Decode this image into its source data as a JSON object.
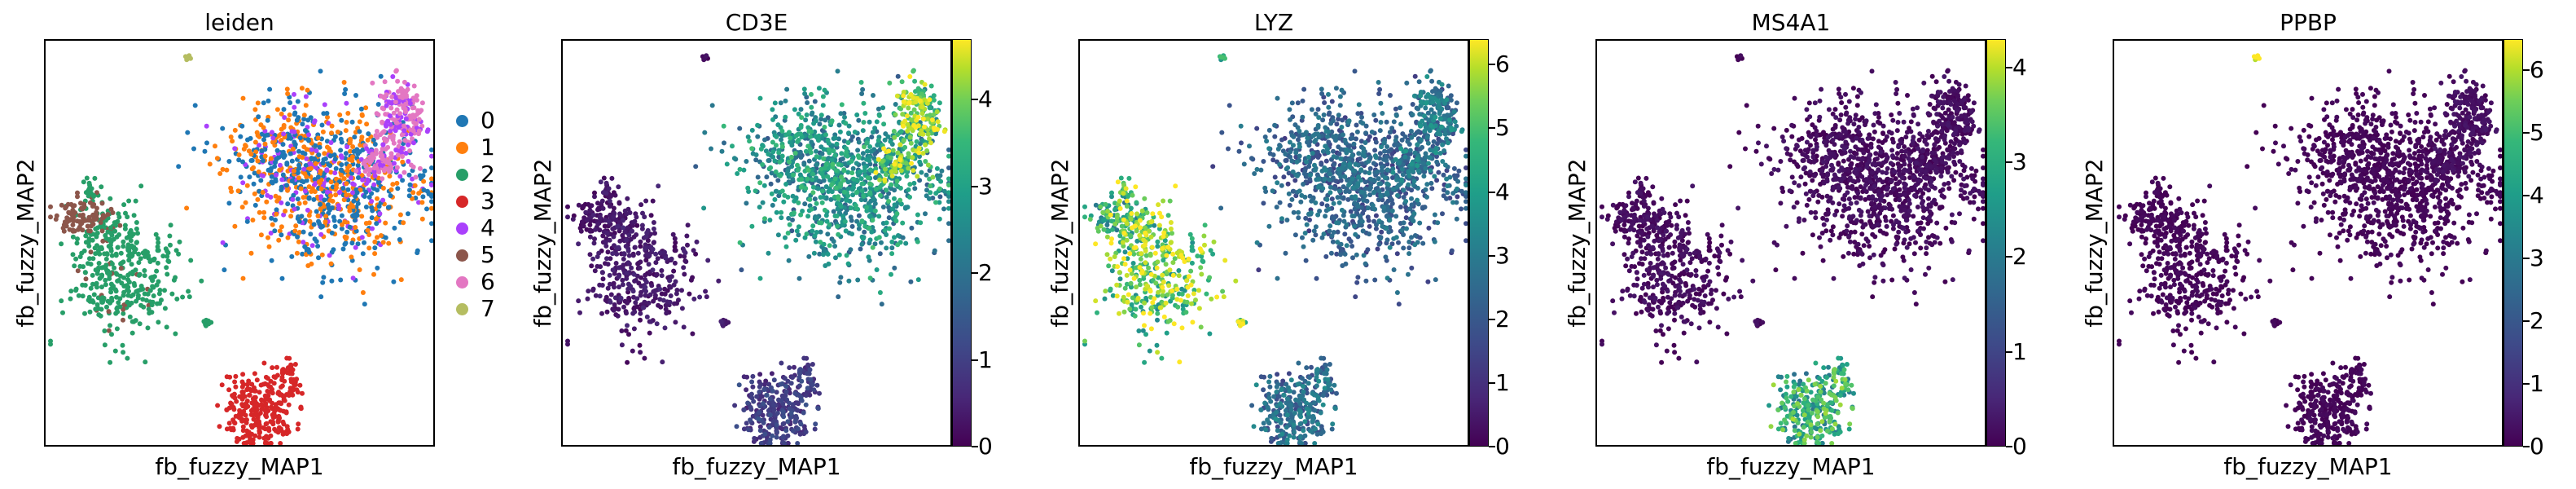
{
  "chart_data": [
    {
      "type": "scatter",
      "title": "leiden",
      "xlabel": "fb_fuzzy_MAP1",
      "ylabel": "fb_fuzzy_MAP2",
      "legend": {
        "placement": "right",
        "entries": [
          {
            "label": "0",
            "color": "#1f77b4"
          },
          {
            "label": "1",
            "color": "#ff7f0e"
          },
          {
            "label": "2",
            "color": "#279e68"
          },
          {
            "label": "3",
            "color": "#d62728"
          },
          {
            "label": "4",
            "color": "#aa40fc"
          },
          {
            "label": "5",
            "color": "#8c564b"
          },
          {
            "label": "6",
            "color": "#e377c2"
          },
          {
            "label": "7",
            "color": "#b5bd61"
          }
        ]
      },
      "colorbar": null,
      "clusters": {
        "T": "0",
        "B": "3",
        "Mono": "2",
        "DC": "5",
        "Up": "6",
        "Pl": "7",
        "Sm": "2"
      }
    },
    {
      "type": "scatter",
      "title": "CD3E",
      "xlabel": "fb_fuzzy_MAP1",
      "ylabel": "fb_fuzzy_MAP2",
      "colorbar": {
        "min": 0,
        "max": 4.7,
        "ticks": [
          "0",
          "1",
          "2",
          "3",
          "4"
        ],
        "cmap": "viridis"
      },
      "expression": {
        "T": 2.3,
        "B": 0.8,
        "Mono": 0.3,
        "DC": 0.2,
        "Up": 3.5,
        "Pl": 0.1,
        "Sm": 0.3
      }
    },
    {
      "type": "scatter",
      "title": "LYZ",
      "xlabel": "fb_fuzzy_MAP1",
      "ylabel": "fb_fuzzy_MAP2",
      "colorbar": {
        "min": 0,
        "max": 6.4,
        "ticks": [
          "0",
          "1",
          "2",
          "3",
          "4",
          "5",
          "6"
        ],
        "cmap": "viridis"
      },
      "expression": {
        "T": 2.0,
        "B": 2.2,
        "Mono": 5.0,
        "DC": 3.8,
        "Up": 2.4,
        "Pl": 3.5,
        "Sm": 4.8
      }
    },
    {
      "type": "scatter",
      "title": "MS4A1",
      "xlabel": "fb_fuzzy_MAP1",
      "ylabel": "fb_fuzzy_MAP2",
      "colorbar": {
        "min": 0,
        "max": 4.3,
        "ticks": [
          "0",
          "1",
          "2",
          "3",
          "4"
        ],
        "cmap": "viridis"
      },
      "expression": {
        "T": 0.1,
        "B": 2.6,
        "Mono": 0.1,
        "DC": 0.1,
        "Up": 0.1,
        "Pl": 0.0,
        "Sm": 0.1
      }
    },
    {
      "type": "scatter",
      "title": "PPBP",
      "xlabel": "fb_fuzzy_MAP1",
      "ylabel": "fb_fuzzy_MAP2",
      "colorbar": {
        "min": 0,
        "max": 6.5,
        "ticks": [
          "0",
          "1",
          "2",
          "3",
          "4",
          "5",
          "6"
        ],
        "cmap": "viridis"
      },
      "expression": {
        "T": 0.05,
        "B": 0.05,
        "Mono": 0.05,
        "DC": 0.05,
        "Up": 0.2,
        "Pl": 6.2,
        "Sm": 0.05
      }
    }
  ]
}
